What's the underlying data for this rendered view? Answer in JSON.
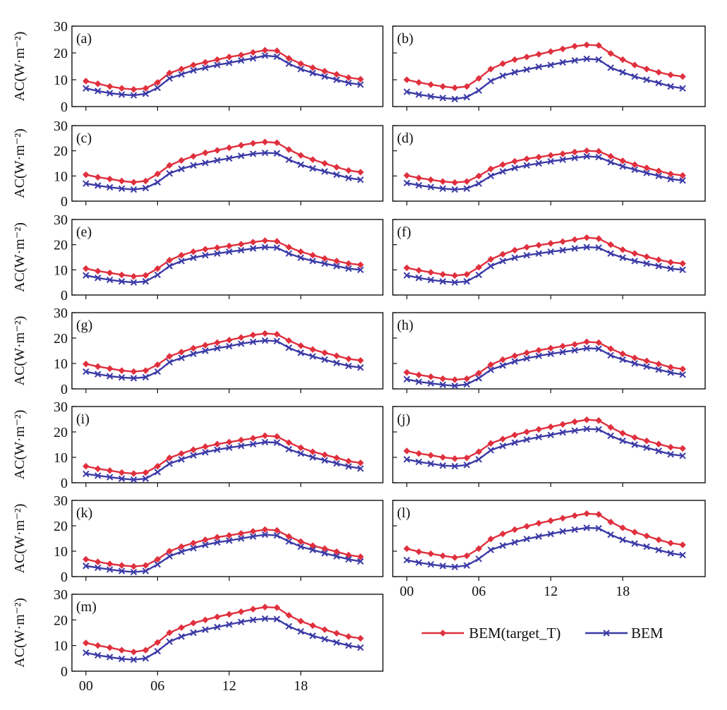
{
  "figure": {
    "ylabel": "AC(W·m⁻²)",
    "x_tick_labels": [
      "00",
      "06",
      "12",
      "18"
    ],
    "y_tick_labels": [
      "0",
      "10",
      "20",
      "30"
    ],
    "legend": [
      {
        "label": "BEM(target_T)",
        "color": "#e0303e",
        "marker": "diamond"
      },
      {
        "label": "BEM",
        "color": "#3b3aa6",
        "marker": "cross"
      }
    ],
    "colors": {
      "target": "#e0303e",
      "bem": "#3b3aa6",
      "axis": "#111111"
    }
  },
  "chart_data": [
    {
      "panel": "(a)",
      "type": "line",
      "ylabel": "AC(W·m⁻²)",
      "ylim": [
        0,
        30
      ],
      "x": [
        0,
        1,
        2,
        3,
        4,
        5,
        6,
        7,
        8,
        9,
        10,
        11,
        12,
        13,
        14,
        15,
        16,
        17,
        18,
        19,
        20,
        21,
        22,
        23
      ],
      "series": [
        {
          "name": "BEM(target_T)",
          "values": [
            9.5,
            8.5,
            7.5,
            6.8,
            6.4,
            6.8,
            9.0,
            12.5,
            14.0,
            15.5,
            16.5,
            17.5,
            18.5,
            19.2,
            20.2,
            21.0,
            20.8,
            18.0,
            16.0,
            14.5,
            13.2,
            12.0,
            10.8,
            10.2
          ]
        },
        {
          "name": "BEM",
          "values": [
            6.8,
            5.8,
            5.0,
            4.5,
            4.2,
            4.8,
            7.0,
            10.5,
            12.0,
            13.5,
            14.5,
            15.5,
            16.3,
            17.2,
            18.0,
            19.0,
            18.6,
            16.0,
            14.0,
            12.5,
            11.2,
            10.0,
            8.8,
            8.2
          ]
        }
      ]
    },
    {
      "panel": "(b)",
      "type": "line",
      "ylabel": "AC(W·m⁻²)",
      "ylim": [
        0,
        30
      ],
      "x": [
        0,
        1,
        2,
        3,
        4,
        5,
        6,
        7,
        8,
        9,
        10,
        11,
        12,
        13,
        14,
        15,
        16,
        17,
        18,
        19,
        20,
        21,
        22,
        23
      ],
      "series": [
        {
          "name": "BEM(target_T)",
          "values": [
            10.0,
            9.0,
            8.2,
            7.5,
            7.0,
            7.5,
            10.5,
            14.0,
            16.0,
            17.5,
            18.5,
            19.5,
            20.5,
            21.5,
            22.5,
            23.0,
            22.8,
            19.8,
            17.5,
            15.5,
            14.0,
            12.8,
            11.8,
            11.2
          ]
        },
        {
          "name": "BEM",
          "values": [
            5.5,
            4.5,
            3.8,
            3.2,
            2.8,
            3.5,
            6.0,
            9.5,
            11.5,
            12.8,
            13.8,
            14.8,
            15.5,
            16.5,
            17.2,
            17.8,
            17.5,
            14.5,
            12.8,
            11.2,
            10.0,
            8.8,
            7.5,
            6.8
          ]
        }
      ]
    },
    {
      "panel": "(c)",
      "type": "line",
      "ylabel": "AC(W·m⁻²)",
      "ylim": [
        0,
        30
      ],
      "x": [
        0,
        1,
        2,
        3,
        4,
        5,
        6,
        7,
        8,
        9,
        10,
        11,
        12,
        13,
        14,
        15,
        16,
        17,
        18,
        19,
        20,
        21,
        22,
        23
      ],
      "series": [
        {
          "name": "BEM(target_T)",
          "values": [
            10.5,
            9.5,
            8.8,
            8.0,
            7.5,
            8.0,
            10.8,
            14.2,
            16.2,
            17.8,
            19.2,
            20.2,
            21.2,
            22.2,
            23.0,
            23.5,
            23.2,
            20.5,
            18.2,
            16.5,
            15.0,
            13.5,
            12.2,
            11.5
          ]
        },
        {
          "name": "BEM",
          "values": [
            7.0,
            6.2,
            5.5,
            5.0,
            4.6,
            5.2,
            7.5,
            11.0,
            12.8,
            14.2,
            15.2,
            16.2,
            17.0,
            18.0,
            18.8,
            19.2,
            19.0,
            16.5,
            14.5,
            13.0,
            11.8,
            10.5,
            9.2,
            8.5
          ]
        }
      ]
    },
    {
      "panel": "(d)",
      "type": "line",
      "ylabel": "AC(W·m⁻²)",
      "ylim": [
        0,
        30
      ],
      "x": [
        0,
        1,
        2,
        3,
        4,
        5,
        6,
        7,
        8,
        9,
        10,
        11,
        12,
        13,
        14,
        15,
        16,
        17,
        18,
        19,
        20,
        21,
        22,
        23
      ],
      "series": [
        {
          "name": "BEM(target_T)",
          "values": [
            10.2,
            9.2,
            8.5,
            7.8,
            7.4,
            7.8,
            10.0,
            12.8,
            14.5,
            15.8,
            16.8,
            17.5,
            18.2,
            18.8,
            19.5,
            20.0,
            19.8,
            17.8,
            16.0,
            14.5,
            13.2,
            12.0,
            10.8,
            10.2
          ]
        },
        {
          "name": "BEM",
          "values": [
            7.2,
            6.3,
            5.6,
            5.0,
            4.6,
            5.0,
            7.0,
            10.0,
            11.8,
            13.2,
            14.2,
            15.0,
            15.8,
            16.5,
            17.2,
            17.8,
            17.5,
            15.5,
            13.8,
            12.5,
            11.2,
            10.0,
            8.8,
            8.2
          ]
        }
      ]
    },
    {
      "panel": "(e)",
      "type": "line",
      "ylabel": "AC(W·m⁻²)",
      "ylim": [
        0,
        30
      ],
      "x": [
        0,
        1,
        2,
        3,
        4,
        5,
        6,
        7,
        8,
        9,
        10,
        11,
        12,
        13,
        14,
        15,
        16,
        17,
        18,
        19,
        20,
        21,
        22,
        23
      ],
      "series": [
        {
          "name": "BEM(target_T)",
          "values": [
            10.5,
            9.5,
            8.8,
            8.0,
            7.4,
            7.8,
            10.5,
            13.8,
            15.8,
            17.2,
            18.2,
            18.8,
            19.5,
            20.2,
            21.0,
            21.6,
            21.3,
            19.0,
            17.2,
            15.8,
            14.5,
            13.5,
            12.5,
            12.0
          ]
        },
        {
          "name": "BEM",
          "values": [
            7.8,
            6.8,
            6.0,
            5.4,
            5.0,
            5.4,
            8.0,
            11.5,
            13.5,
            14.8,
            15.8,
            16.5,
            17.2,
            17.8,
            18.5,
            19.0,
            18.8,
            16.5,
            14.8,
            13.5,
            12.5,
            11.5,
            10.5,
            10.0
          ]
        }
      ]
    },
    {
      "panel": "(f)",
      "type": "line",
      "ylabel": "AC(W·m⁻²)",
      "ylim": [
        0,
        30
      ],
      "x": [
        0,
        1,
        2,
        3,
        4,
        5,
        6,
        7,
        8,
        9,
        10,
        11,
        12,
        13,
        14,
        15,
        16,
        17,
        18,
        19,
        20,
        21,
        22,
        23
      ],
      "series": [
        {
          "name": "BEM(target_T)",
          "values": [
            10.8,
            9.8,
            9.0,
            8.2,
            7.7,
            8.2,
            11.0,
            14.2,
            16.2,
            17.8,
            19.0,
            19.8,
            20.5,
            21.2,
            22.0,
            22.8,
            22.4,
            20.0,
            18.0,
            16.5,
            15.2,
            14.0,
            13.0,
            12.5
          ]
        },
        {
          "name": "BEM",
          "values": [
            7.8,
            6.8,
            6.0,
            5.4,
            5.0,
            5.4,
            8.0,
            11.5,
            13.5,
            14.8,
            15.8,
            16.5,
            17.2,
            17.8,
            18.5,
            19.0,
            18.8,
            16.5,
            14.8,
            13.5,
            12.5,
            11.5,
            10.5,
            10.0
          ]
        }
      ]
    },
    {
      "panel": "(g)",
      "type": "line",
      "ylabel": "AC(W·m⁻²)",
      "ylim": [
        0,
        30
      ],
      "x": [
        0,
        1,
        2,
        3,
        4,
        5,
        6,
        7,
        8,
        9,
        10,
        11,
        12,
        13,
        14,
        15,
        16,
        17,
        18,
        19,
        20,
        21,
        22,
        23
      ],
      "series": [
        {
          "name": "BEM(target_T)",
          "values": [
            9.8,
            8.8,
            8.0,
            7.2,
            6.8,
            7.2,
            9.5,
            12.8,
            14.5,
            16.0,
            17.2,
            18.2,
            19.2,
            20.2,
            21.2,
            21.8,
            21.5,
            19.0,
            17.0,
            15.5,
            14.2,
            13.0,
            11.8,
            11.2
          ]
        },
        {
          "name": "BEM",
          "values": [
            6.8,
            5.8,
            5.0,
            4.5,
            4.2,
            4.6,
            6.8,
            10.5,
            12.2,
            13.8,
            15.0,
            16.0,
            16.8,
            17.8,
            18.5,
            19.0,
            18.8,
            16.2,
            14.2,
            12.8,
            11.5,
            10.2,
            9.0,
            8.4
          ]
        }
      ]
    },
    {
      "panel": "(h)",
      "type": "line",
      "ylabel": "AC(W·m⁻²)",
      "ylim": [
        0,
        30
      ],
      "x": [
        0,
        1,
        2,
        3,
        4,
        5,
        6,
        7,
        8,
        9,
        10,
        11,
        12,
        13,
        14,
        15,
        16,
        17,
        18,
        19,
        20,
        21,
        22,
        23
      ],
      "series": [
        {
          "name": "BEM(target_T)",
          "values": [
            6.5,
            5.5,
            4.8,
            4.0,
            3.6,
            4.0,
            6.2,
            9.5,
            11.5,
            13.0,
            14.2,
            15.2,
            16.0,
            16.8,
            17.5,
            18.5,
            18.2,
            15.8,
            13.8,
            12.2,
            11.0,
            9.8,
            8.5,
            7.8
          ]
        },
        {
          "name": "BEM",
          "values": [
            3.8,
            2.8,
            2.2,
            1.6,
            1.2,
            1.8,
            4.2,
            7.5,
            9.2,
            10.8,
            12.0,
            13.0,
            13.8,
            14.5,
            15.2,
            16.0,
            15.8,
            13.2,
            11.5,
            10.0,
            8.8,
            7.6,
            6.4,
            5.6
          ]
        }
      ]
    },
    {
      "panel": "(i)",
      "type": "line",
      "ylabel": "AC(W·m⁻²)",
      "ylim": [
        0,
        30
      ],
      "x": [
        0,
        1,
        2,
        3,
        4,
        5,
        6,
        7,
        8,
        9,
        10,
        11,
        12,
        13,
        14,
        15,
        16,
        17,
        18,
        19,
        20,
        21,
        22,
        23
      ],
      "series": [
        {
          "name": "BEM(target_T)",
          "values": [
            6.5,
            5.5,
            4.8,
            4.0,
            3.6,
            4.0,
            6.5,
            9.8,
            11.5,
            13.0,
            14.2,
            15.2,
            16.0,
            16.8,
            17.5,
            18.5,
            18.2,
            15.8,
            13.8,
            12.2,
            11.0,
            9.8,
            8.5,
            7.8
          ]
        },
        {
          "name": "BEM",
          "values": [
            3.5,
            2.8,
            2.2,
            1.6,
            1.2,
            1.6,
            4.2,
            7.5,
            9.2,
            10.8,
            12.0,
            13.0,
            13.8,
            14.5,
            15.2,
            16.0,
            15.8,
            13.2,
            11.5,
            10.0,
            8.8,
            7.6,
            6.4,
            5.6
          ]
        }
      ]
    },
    {
      "panel": "(j)",
      "type": "line",
      "ylabel": "AC(W·m⁻²)",
      "ylim": [
        0,
        30
      ],
      "x": [
        0,
        1,
        2,
        3,
        4,
        5,
        6,
        7,
        8,
        9,
        10,
        11,
        12,
        13,
        14,
        15,
        16,
        17,
        18,
        19,
        20,
        21,
        22,
        23
      ],
      "series": [
        {
          "name": "BEM(target_T)",
          "values": [
            12.5,
            11.5,
            10.8,
            10.0,
            9.5,
            9.8,
            12.2,
            15.5,
            17.2,
            18.8,
            20.0,
            21.0,
            22.0,
            23.0,
            24.0,
            24.8,
            24.5,
            21.8,
            19.5,
            17.8,
            16.5,
            15.2,
            14.0,
            13.5
          ]
        },
        {
          "name": "BEM",
          "values": [
            9.2,
            8.2,
            7.5,
            6.8,
            6.5,
            7.0,
            9.2,
            12.8,
            14.5,
            15.8,
            17.0,
            18.0,
            18.8,
            19.8,
            20.5,
            21.2,
            21.0,
            18.5,
            16.5,
            15.0,
            13.8,
            12.5,
            11.2,
            10.6
          ]
        }
      ]
    },
    {
      "panel": "(k)",
      "type": "line",
      "ylabel": "AC(W·m⁻²)",
      "ylim": [
        0,
        30
      ],
      "x": [
        0,
        1,
        2,
        3,
        4,
        5,
        6,
        7,
        8,
        9,
        10,
        11,
        12,
        13,
        14,
        15,
        16,
        17,
        18,
        19,
        20,
        21,
        22,
        23
      ],
      "series": [
        {
          "name": "BEM(target_T)",
          "values": [
            6.8,
            5.8,
            5.0,
            4.4,
            4.0,
            4.4,
            6.8,
            10.0,
            11.8,
            13.2,
            14.5,
            15.5,
            16.2,
            17.0,
            17.8,
            18.5,
            18.2,
            15.8,
            13.8,
            12.2,
            11.0,
            9.8,
            8.5,
            7.8
          ]
        },
        {
          "name": "BEM",
          "values": [
            4.2,
            3.5,
            2.8,
            2.2,
            1.8,
            2.2,
            4.8,
            8.0,
            9.8,
            11.2,
            12.5,
            13.5,
            14.2,
            15.0,
            15.8,
            16.5,
            16.2,
            13.8,
            11.8,
            10.5,
            9.2,
            8.0,
            6.8,
            6.0
          ]
        }
      ]
    },
    {
      "panel": "(l)",
      "type": "line",
      "ylabel": "AC(W·m⁻²)",
      "ylim": [
        0,
        30
      ],
      "x": [
        0,
        1,
        2,
        3,
        4,
        5,
        6,
        7,
        8,
        9,
        10,
        11,
        12,
        13,
        14,
        15,
        16,
        17,
        18,
        19,
        20,
        21,
        22,
        23
      ],
      "series": [
        {
          "name": "BEM(target_T)",
          "values": [
            11.0,
            9.8,
            9.0,
            8.2,
            7.5,
            8.2,
            11.0,
            14.8,
            16.8,
            18.5,
            19.8,
            21.0,
            22.0,
            23.0,
            24.0,
            24.8,
            24.5,
            21.5,
            19.2,
            17.5,
            16.0,
            14.5,
            13.2,
            12.5
          ]
        },
        {
          "name": "BEM",
          "values": [
            6.5,
            5.5,
            4.8,
            4.2,
            3.8,
            4.4,
            7.0,
            10.5,
            12.2,
            13.5,
            14.8,
            15.8,
            16.8,
            17.8,
            18.5,
            19.2,
            19.0,
            16.5,
            14.5,
            13.0,
            11.8,
            10.5,
            9.2,
            8.5
          ]
        }
      ]
    },
    {
      "panel": "(m)",
      "type": "line",
      "ylabel": "AC(W·m⁻²)",
      "ylim": [
        0,
        30
      ],
      "x": [
        0,
        1,
        2,
        3,
        4,
        5,
        6,
        7,
        8,
        9,
        10,
        11,
        12,
        13,
        14,
        15,
        16,
        17,
        18,
        19,
        20,
        21,
        22,
        23
      ],
      "series": [
        {
          "name": "BEM(target_T)",
          "values": [
            11.0,
            10.0,
            9.2,
            8.2,
            7.5,
            8.2,
            11.2,
            15.0,
            17.0,
            18.8,
            20.0,
            21.2,
            22.2,
            23.2,
            24.2,
            25.0,
            24.8,
            21.8,
            19.5,
            17.8,
            16.2,
            14.8,
            13.5,
            12.8
          ]
        },
        {
          "name": "BEM",
          "values": [
            7.2,
            6.2,
            5.5,
            4.8,
            4.5,
            5.0,
            7.8,
            11.5,
            13.5,
            15.0,
            16.2,
            17.2,
            18.2,
            19.2,
            20.0,
            20.5,
            20.3,
            17.5,
            15.5,
            13.8,
            12.5,
            11.2,
            10.0,
            9.2
          ]
        }
      ]
    }
  ]
}
